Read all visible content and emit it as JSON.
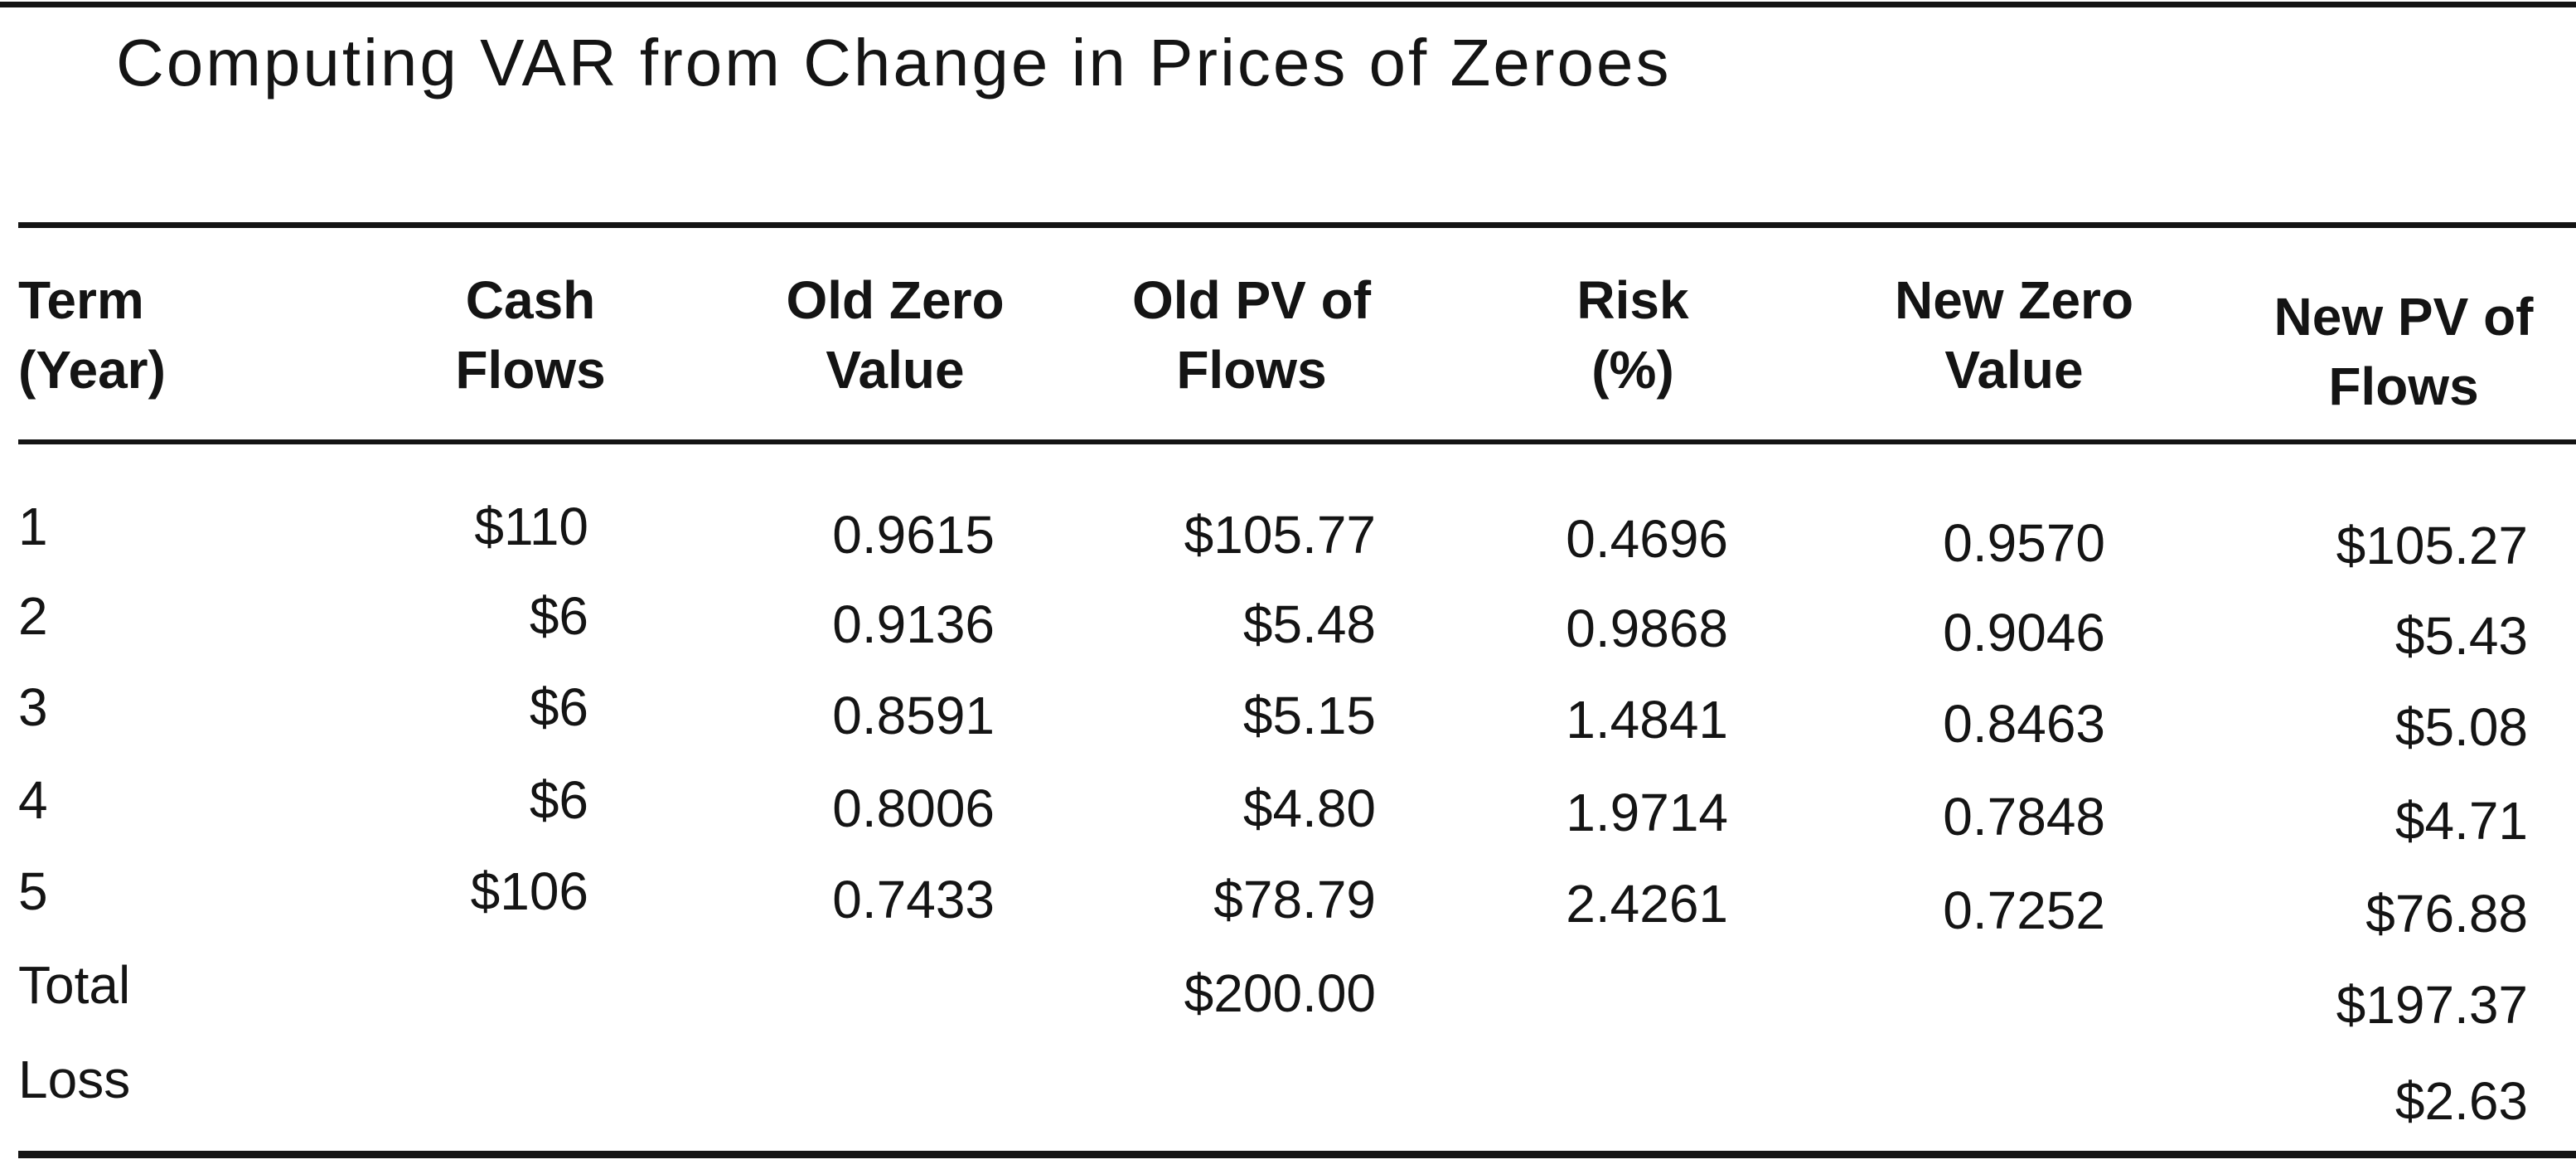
{
  "title": "Computing VAR from Change in Prices of Zeroes",
  "columns": [
    [
      "Term",
      "(Year)"
    ],
    [
      "Cash",
      "Flows"
    ],
    [
      "Old Zero",
      "Value"
    ],
    [
      "Old PV of",
      "Flows"
    ],
    [
      "Risk",
      "(%)"
    ],
    [
      "New Zero",
      "Value"
    ],
    [
      "New PV of",
      "Flows"
    ]
  ],
  "rows": [
    [
      "1",
      "$110",
      "0.9615",
      "$105.77",
      "0.4696",
      "0.9570",
      "$105.27"
    ],
    [
      "2",
      "$6",
      "0.9136",
      "$5.48",
      "0.9868",
      "0.9046",
      "$5.43"
    ],
    [
      "3",
      "$6",
      "0.8591",
      "$5.15",
      "1.4841",
      "0.8463",
      "$5.08"
    ],
    [
      "4",
      "$6",
      "0.8006",
      "$4.80",
      "1.9714",
      "0.7848",
      "$4.71"
    ],
    [
      "5",
      "$106",
      "0.7433",
      "$78.79",
      "2.4261",
      "0.7252",
      "$76.88"
    ]
  ],
  "total": {
    "label": "Total",
    "old_pv": "$200.00",
    "new_pv": "$197.37"
  },
  "loss": {
    "label": "Loss",
    "value": "$2.63"
  }
}
